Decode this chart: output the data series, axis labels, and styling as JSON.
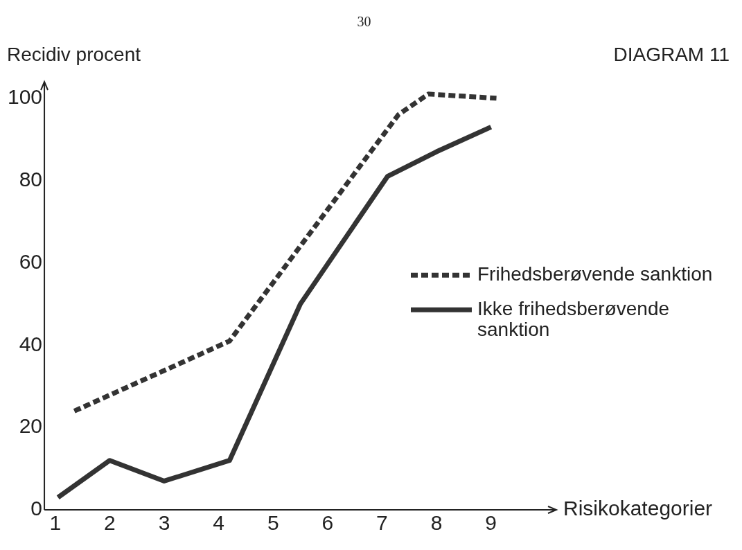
{
  "chart_data": {
    "type": "line",
    "title": "DIAGRAM 11",
    "ylabel": "Recidiv procent",
    "xlabel": "Risikokategorier",
    "annotations": [
      "30"
    ],
    "xlim": [
      0.8,
      10.2
    ],
    "xticks": [
      1,
      2,
      3,
      4,
      5,
      6,
      7,
      8,
      9
    ],
    "ylim": [
      0,
      104
    ],
    "yticks": [
      0,
      20,
      40,
      60,
      80,
      100
    ],
    "grid": false,
    "legend": "right",
    "marker": "none",
    "series": [
      {
        "name": "Frihedsberøvende sanktion",
        "color": "#333333",
        "line_style": "dashed",
        "x": [
          1.35,
          4.2,
          7.3,
          7.85,
          9.1
        ],
        "values": [
          24,
          41,
          96,
          101,
          100
        ]
      },
      {
        "name": "Ikke frihedsberøvende sanktion",
        "color": "#333333",
        "line_style": "solid",
        "x": [
          1.05,
          2,
          3,
          4.2,
          5.5,
          7.1,
          8,
          9
        ],
        "values": [
          3,
          12,
          7,
          12,
          50,
          81,
          87,
          93
        ]
      }
    ]
  }
}
